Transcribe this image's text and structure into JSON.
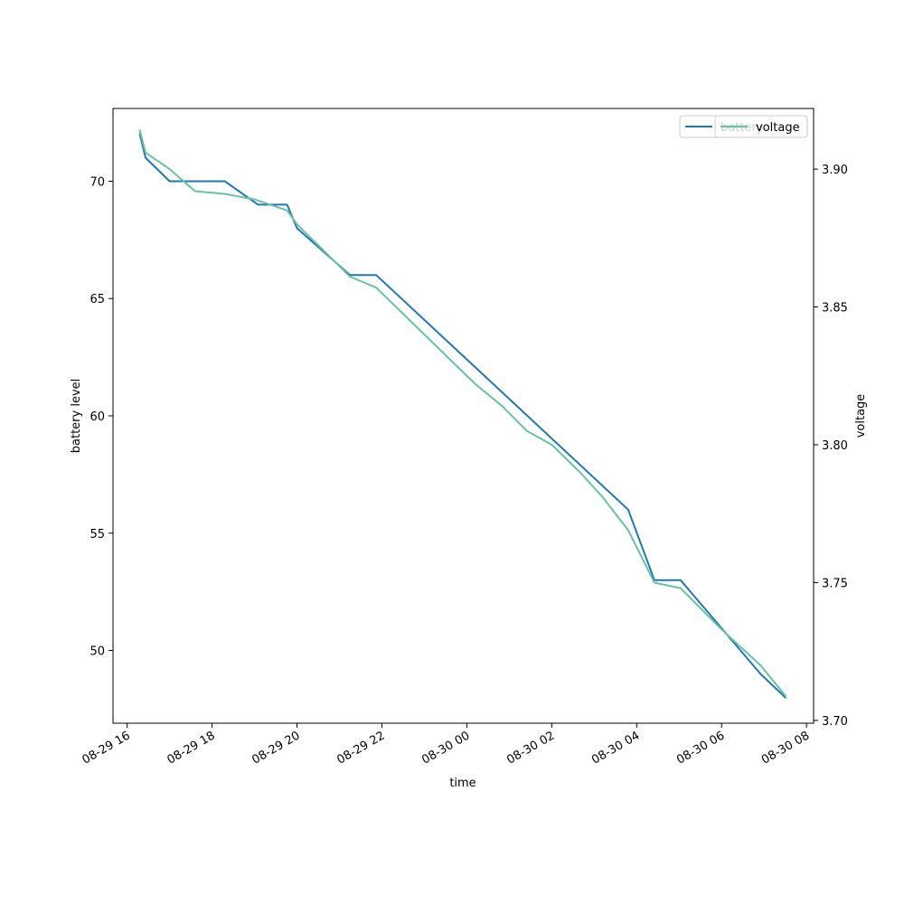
{
  "chart_data": {
    "type": "line",
    "title": "",
    "xlabel": "time",
    "ylabel_left": "battery level",
    "ylabel_right": "voltage",
    "x_range": [
      "2023-08-29T15:40",
      "2023-08-30T08:10"
    ],
    "x_ticks": [
      {
        "t": "2023-08-29T16:00",
        "label": "08-29 16"
      },
      {
        "t": "2023-08-29T18:00",
        "label": "08-29 18"
      },
      {
        "t": "2023-08-29T20:00",
        "label": "08-29 20"
      },
      {
        "t": "2023-08-29T22:00",
        "label": "08-29 22"
      },
      {
        "t": "2023-08-30T00:00",
        "label": "08-30 00"
      },
      {
        "t": "2023-08-30T02:00",
        "label": "08-30 02"
      },
      {
        "t": "2023-08-30T04:00",
        "label": "08-30 04"
      },
      {
        "t": "2023-08-30T06:00",
        "label": "08-30 06"
      },
      {
        "t": "2023-08-30T08:00",
        "label": "08-30 08"
      }
    ],
    "ylim_left": [
      46.9,
      73.1
    ],
    "ylim_right": [
      3.699,
      3.922
    ],
    "y_ticks_left": [
      {
        "v": 50,
        "label": "50"
      },
      {
        "v": 55,
        "label": "55"
      },
      {
        "v": 60,
        "label": "60"
      },
      {
        "v": 65,
        "label": "65"
      },
      {
        "v": 70,
        "label": "70"
      }
    ],
    "y_ticks_right": [
      {
        "v": 3.7,
        "label": "3.70"
      },
      {
        "v": 3.75,
        "label": "3.75"
      },
      {
        "v": 3.8,
        "label": "3.80"
      },
      {
        "v": 3.85,
        "label": "3.85"
      },
      {
        "v": 3.9,
        "label": "3.90"
      }
    ],
    "grid": false,
    "legend_placement": "top-right",
    "series": [
      {
        "name": "battery",
        "axis": "left",
        "color": "#1f77b4",
        "points": [
          {
            "t": "2023-08-29T16:18",
            "v": 72
          },
          {
            "t": "2023-08-29T16:26",
            "v": 71
          },
          {
            "t": "2023-08-29T17:00",
            "v": 70
          },
          {
            "t": "2023-08-29T18:18",
            "v": 70
          },
          {
            "t": "2023-08-29T19:05",
            "v": 69
          },
          {
            "t": "2023-08-29T19:46",
            "v": 69
          },
          {
            "t": "2023-08-29T20:00",
            "v": 68
          },
          {
            "t": "2023-08-29T21:15",
            "v": 66
          },
          {
            "t": "2023-08-29T21:52",
            "v": 66
          },
          {
            "t": "2023-08-30T03:48",
            "v": 56
          },
          {
            "t": "2023-08-30T04:25",
            "v": 53
          },
          {
            "t": "2023-08-30T05:02",
            "v": 53
          },
          {
            "t": "2023-08-30T06:55",
            "v": 49
          },
          {
            "t": "2023-08-30T07:30",
            "v": 48
          }
        ]
      },
      {
        "name": "voltage",
        "axis": "right",
        "color": "#66c2a5",
        "points": [
          {
            "t": "2023-08-29T16:18",
            "v": 3.914
          },
          {
            "t": "2023-08-29T16:26",
            "v": 3.906
          },
          {
            "t": "2023-08-29T17:00",
            "v": 3.9
          },
          {
            "t": "2023-08-29T17:36",
            "v": 3.892
          },
          {
            "t": "2023-08-29T18:18",
            "v": 3.891
          },
          {
            "t": "2023-08-29T19:00",
            "v": 3.889
          },
          {
            "t": "2023-08-29T19:46",
            "v": 3.885
          },
          {
            "t": "2023-08-29T20:00",
            "v": 3.88
          },
          {
            "t": "2023-08-29T21:15",
            "v": 3.861
          },
          {
            "t": "2023-08-29T21:52",
            "v": 3.857
          },
          {
            "t": "2023-08-30T00:12",
            "v": 3.822
          },
          {
            "t": "2023-08-30T00:50",
            "v": 3.814
          },
          {
            "t": "2023-08-30T01:25",
            "v": 3.805
          },
          {
            "t": "2023-08-30T02:00",
            "v": 3.8
          },
          {
            "t": "2023-08-30T02:40",
            "v": 3.79
          },
          {
            "t": "2023-08-30T03:12",
            "v": 3.781
          },
          {
            "t": "2023-08-30T03:48",
            "v": 3.769
          },
          {
            "t": "2023-08-30T04:25",
            "v": 3.75
          },
          {
            "t": "2023-08-30T05:02",
            "v": 3.748
          },
          {
            "t": "2023-08-30T06:00",
            "v": 3.733
          },
          {
            "t": "2023-08-30T06:55",
            "v": 3.72
          },
          {
            "t": "2023-08-30T07:30",
            "v": 3.709
          }
        ]
      }
    ]
  }
}
